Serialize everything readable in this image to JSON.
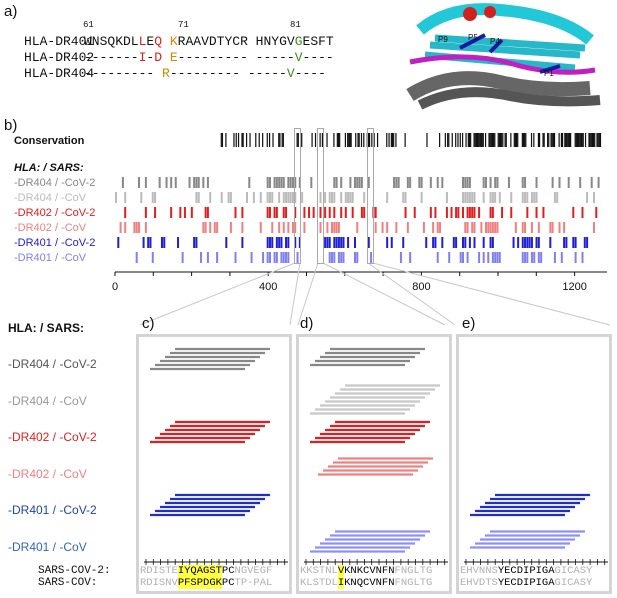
{
  "panel_a": {
    "label": "a)",
    "pos_labels": [
      "61",
      "71",
      "81"
    ],
    "rows": [
      {
        "name": "HLA-DR401",
        "segments": [
          {
            "t": "WNSQKDL",
            "c": "black"
          },
          {
            "t": "L",
            "c": "red"
          },
          {
            "t": "E",
            "c": "black"
          },
          {
            "t": "Q",
            "c": "red"
          },
          {
            "t": " ",
            "c": "black"
          },
          {
            "t": "K",
            "c": "orange"
          },
          {
            "t": "RAAVDTYCR HNYGV",
            "c": "black"
          },
          {
            "t": "G",
            "c": "green"
          },
          {
            "t": "ESFT",
            "c": "black"
          }
        ]
      },
      {
        "name": "HLA-DR402",
        "segments": [
          {
            "t": "-------",
            "c": "black"
          },
          {
            "t": "I",
            "c": "red"
          },
          {
            "t": "-",
            "c": "black"
          },
          {
            "t": "D",
            "c": "red"
          },
          {
            "t": " ",
            "c": "black"
          },
          {
            "t": "E",
            "c": "orange"
          },
          {
            "t": "--------- -----",
            "c": "black"
          },
          {
            "t": "V",
            "c": "green"
          },
          {
            "t": "----",
            "c": "black"
          }
        ]
      },
      {
        "name": "HLA-DR404",
        "segments": [
          {
            "t": "---------",
            "c": "black"
          },
          {
            "t": " ",
            "c": "black"
          },
          {
            "t": "R",
            "c": "orange"
          },
          {
            "t": "--------- -----",
            "c": "black"
          },
          {
            "t": "V",
            "c": "green"
          },
          {
            "t": "----",
            "c": "black"
          }
        ]
      }
    ],
    "structure_labels": [
      "P9",
      "P5",
      "P4",
      "P1"
    ]
  },
  "panel_b": {
    "label": "b)",
    "conservation_label": "Conservation",
    "header_label": "HLA: / SARS:",
    "rows": [
      {
        "label": "-DR404 / -CoV-2",
        "color": "#888888"
      },
      {
        "label": "-DR404 / -CoV",
        "color": "#bbbbbb"
      },
      {
        "label": "-DR402 / -CoV-2",
        "color": "#e02020"
      },
      {
        "label": "-DR402 / -CoV",
        "color": "#f08080"
      },
      {
        "label": "-DR401 / -CoV-2",
        "color": "#2020d0"
      },
      {
        "label": "-DR401 / -CoV",
        "color": "#8080f0"
      }
    ],
    "axis_ticks": [
      "0",
      "400",
      "800",
      "1200"
    ]
  },
  "panel_c_labels": {
    "header": "HLA: / SARS:",
    "rows": [
      {
        "label": "-DR404 / -CoV-2",
        "color": "#555555"
      },
      {
        "label": "-DR404 / -CoV",
        "color": "#999999"
      },
      {
        "label": "-DR402 / -CoV-2",
        "color": "#e02020"
      },
      {
        "label": "-DR402 / -CoV",
        "color": "#f08080"
      },
      {
        "label": "-DR401 / -CoV-2",
        "color": "#2244aa"
      },
      {
        "label": "-DR401 / -CoV",
        "color": "#3366bb"
      }
    ],
    "seq_labels": [
      "SARS-COV-2:",
      "SARS-COV:"
    ]
  },
  "insets": [
    {
      "label": "c)",
      "seq1": [
        {
          "t": "RDISTE",
          "s": "grey"
        },
        {
          "t": "IYQAGST",
          "s": "hl"
        },
        {
          "t": "PC",
          "s": "black"
        },
        {
          "t": "NGVEGF",
          "s": "grey"
        }
      ],
      "seq2": [
        {
          "t": "RDISNV",
          "s": "grey"
        },
        {
          "t": "PFSPDGK",
          "s": "hl"
        },
        {
          "t": "PC",
          "s": "black"
        },
        {
          "t": "TP-PAL",
          "s": "grey"
        }
      ]
    },
    {
      "label": "d)",
      "seq1": [
        {
          "t": "KKSTNL",
          "s": "grey"
        },
        {
          "t": "V",
          "s": "hl"
        },
        {
          "t": "KNK",
          "s": "black"
        },
        {
          "t": "CVNFN",
          "s": "black"
        },
        {
          "t": "FNGLTG",
          "s": "grey"
        }
      ],
      "seq2": [
        {
          "t": "KLSTDL",
          "s": "grey"
        },
        {
          "t": "I",
          "s": "hl"
        },
        {
          "t": "KNQ",
          "s": "black"
        },
        {
          "t": "CVNFN",
          "s": "black"
        },
        {
          "t": "FNGLTG",
          "s": "grey"
        }
      ]
    },
    {
      "label": "e)",
      "seq1": [
        {
          "t": "EHVNNS",
          "s": "grey"
        },
        {
          "t": "YECDIPIGA",
          "s": "black"
        },
        {
          "t": "GICASY",
          "s": "grey"
        }
      ],
      "seq2": [
        {
          "t": "EHVDTS",
          "s": "grey"
        },
        {
          "t": "YECDIPIGA",
          "s": "black"
        },
        {
          "t": "GICASY",
          "s": "grey"
        }
      ]
    }
  ]
}
